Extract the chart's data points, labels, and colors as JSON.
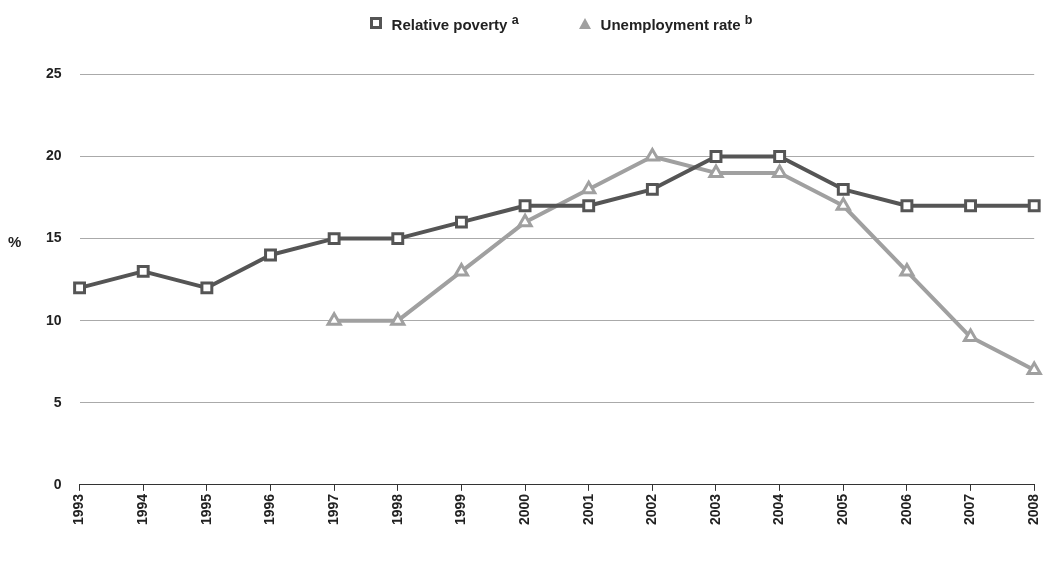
{
  "chart_data": {
    "type": "line",
    "ylabel": "%",
    "categories": [
      "1993",
      "1994",
      "1995",
      "1996",
      "1997",
      "1998",
      "1999",
      "2000",
      "2001",
      "2002",
      "2003",
      "2004",
      "2005",
      "2006",
      "2007",
      "2008"
    ],
    "series": [
      {
        "name": "Relative poverty $^{a}$",
        "color": "#555555",
        "marker": "square",
        "values": [
          12,
          13,
          12,
          14,
          15,
          15,
          16,
          17,
          17,
          18,
          20,
          20,
          18,
          17,
          17,
          17
        ]
      },
      {
        "name": "Unemployment rate $^{b}$",
        "color": "#a0a0a0",
        "marker": "triangle",
        "values": [
          null,
          null,
          null,
          null,
          10,
          10,
          13,
          16,
          18,
          20,
          19,
          19,
          17,
          13,
          9,
          7
        ]
      }
    ],
    "ylim": [
      0,
      25
    ],
    "yticks": [
      0,
      5,
      10,
      15,
      20,
      25
    ],
    "grid": "y",
    "legend": "top",
    "line_style": "solid"
  }
}
